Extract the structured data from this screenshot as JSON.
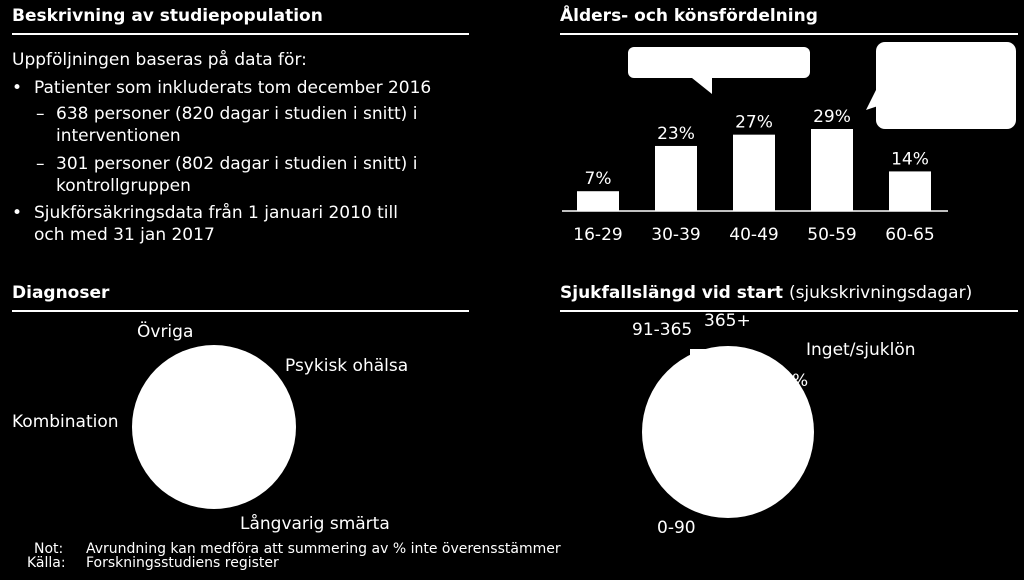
{
  "sections": {
    "study_population": {
      "title": "Beskrivning av studiepopulation",
      "intro": "Uppföljningen baseras på data för:",
      "bullet1": "Patienter som inkluderats tom december 2016",
      "sub1_line1": "638 personer (820 dagar i studien i snitt) i",
      "sub1_line2": "interventionen",
      "sub2_line1": "301 personer (802 dagar i studien i snitt) i",
      "sub2_line2": "kontrollgruppen",
      "bullet2_line1": "Sjukförsäkringsdata från 1 januari 2010 till",
      "bullet2_line2": "och med 31 jan 2017"
    },
    "age_gender": {
      "title": "Ålders- och könsfördelning"
    },
    "diagnoses": {
      "title": "Diagnoser",
      "labels": {
        "ovriga": "Övriga",
        "psykisk": "Psykisk ohälsa",
        "kombination": "Kombination",
        "smarta": "Långvarig smärta"
      }
    },
    "sick_length": {
      "title": "Sjukfallslängd vid start",
      "title_suffix": "(sjukskrivningsdagar)",
      "labels": {
        "r91_365": "91-365",
        "r365plus": "365+",
        "inget": "Inget/sjuklön",
        "r0_90": "0-90",
        "partial_pct": "%"
      }
    }
  },
  "footnotes": {
    "not_label": "Not:",
    "not_text": "Avrundning kan medföra att summering av % inte överensstämmer",
    "kalla_label": "Källa:",
    "kalla_text": "Forskningsstudiens register"
  },
  "chart_data": [
    {
      "type": "bar",
      "categories": [
        "16-29",
        "30-39",
        "40-49",
        "50-59",
        "60-65"
      ],
      "values": [
        7,
        23,
        27,
        29,
        14
      ],
      "value_labels": [
        "7%",
        "23%",
        "27%",
        "29%",
        "14%"
      ],
      "title": "Ålders- och könsfördelning",
      "ylim": [
        0,
        29
      ],
      "grid": false
    },
    {
      "type": "pie",
      "title": "Diagnoser",
      "labels": [
        "Övriga",
        "Psykisk ohälsa",
        "Kombination",
        "Långvarig smärta"
      ]
    },
    {
      "type": "pie",
      "title": "Sjukfallslängd vid start",
      "labels": [
        "91-365",
        "365+",
        "Inget/sjuklön",
        "0-90"
      ]
    }
  ],
  "colors": {
    "background": "#000000",
    "foreground": "#ffffff"
  }
}
